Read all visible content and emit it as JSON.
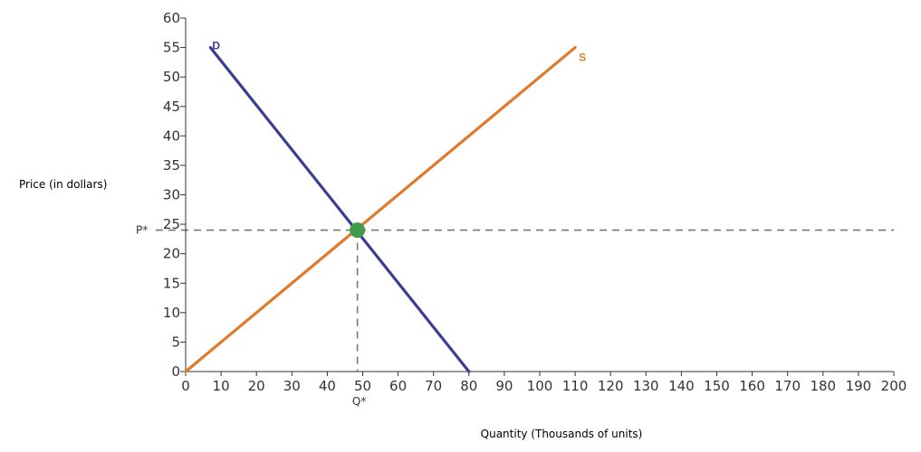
{
  "chart_data": {
    "type": "line",
    "xlabel": "Quantity (Thousands of units)",
    "ylabel": "Price (in dollars)",
    "xlim": [
      0,
      200
    ],
    "ylim": [
      0,
      60
    ],
    "xticks": [
      "0",
      "10",
      "20",
      "30",
      "40",
      "50",
      "60",
      "70",
      "80",
      "90",
      "100",
      "110",
      "120",
      "130",
      "140",
      "150",
      "160",
      "170",
      "180",
      "190",
      "200"
    ],
    "yticks": [
      "0",
      "5",
      "10",
      "15",
      "20",
      "25",
      "30",
      "35",
      "40",
      "45",
      "50",
      "55",
      "60"
    ],
    "series": [
      {
        "name": "D",
        "color": "#3b3d96",
        "x": [
          7,
          80
        ],
        "y": [
          55,
          0
        ]
      },
      {
        "name": "S",
        "color": "#e07b28",
        "x": [
          0,
          110
        ],
        "y": [
          0,
          55
        ]
      }
    ],
    "equilibrium": {
      "x": 48.5,
      "y": 24,
      "color": "#3f9a4a",
      "price_label": "P*",
      "quantity_label": "Q*"
    },
    "grid": false
  }
}
